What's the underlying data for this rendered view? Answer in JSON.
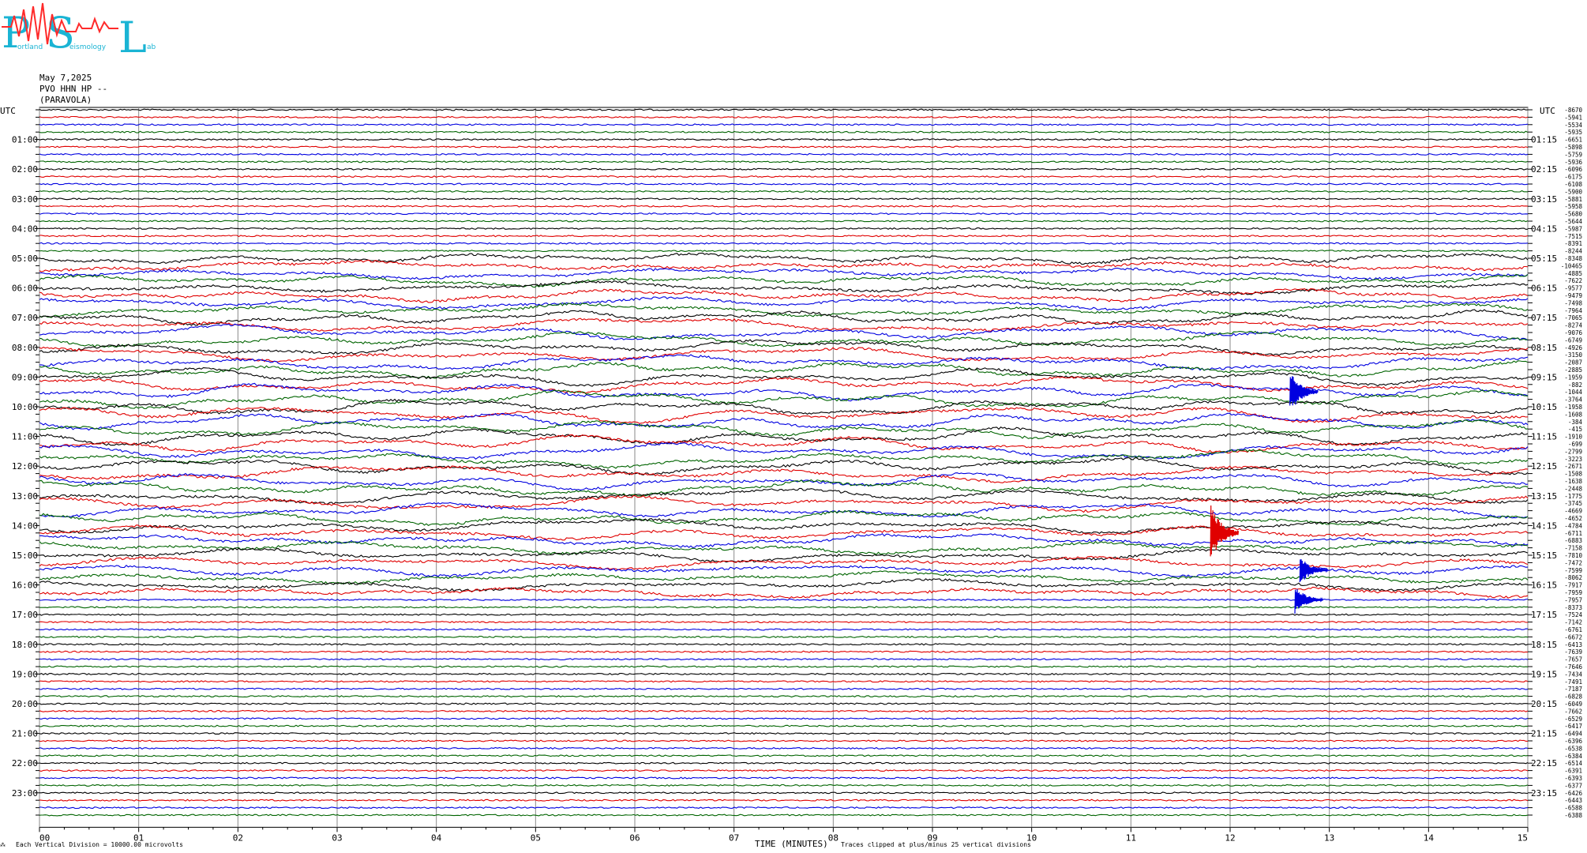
{
  "logo": {
    "letters": [
      "P",
      "S",
      "L"
    ],
    "small_text": [
      "ortland",
      "eismology",
      "ab"
    ],
    "color": "#1ab4d4",
    "trace_color": "#ff2a2a"
  },
  "header": {
    "date": "May 7,2025",
    "station": "PVO HHN HP --",
    "location": "(PARAVOLA)"
  },
  "footer": {
    "logo_glyph": "⁂",
    "vertical_division": "Each Vertical Division = 10000.00 microvolts",
    "time_label": "TIME (MINUTES)",
    "clip_note": "Traces clipped at plus/minus 25 vertical divisions"
  },
  "chart_data": {
    "type": "line",
    "title": "",
    "xlabel": "TIME (MINUTES)",
    "x_range": [
      0,
      15
    ],
    "x_ticks": [
      "00",
      "01",
      "02",
      "03",
      "04",
      "05",
      "06",
      "07",
      "08",
      "09",
      "10",
      "11",
      "12",
      "13",
      "14",
      "15"
    ],
    "trace_colors": [
      "#000000",
      "#e00000",
      "#0000e0",
      "#006400"
    ],
    "left_axis_title": "UTC",
    "right_axis_title": "UTC",
    "left_hour_labels": [
      "01:00",
      "02:00",
      "03:00",
      "04:00",
      "05:00",
      "06:00",
      "07:00",
      "08:00",
      "09:00",
      "10:00",
      "11:00",
      "12:00",
      "13:00",
      "14:00",
      "15:00",
      "16:00",
      "17:00",
      "18:00",
      "19:00",
      "20:00",
      "21:00",
      "22:00",
      "23:00"
    ],
    "right_hour_labels": [
      "01:15",
      "02:15",
      "03:15",
      "04:15",
      "05:15",
      "06:15",
      "07:15",
      "08:15",
      "09:15",
      "10:15",
      "11:15",
      "12:15",
      "13:15",
      "14:15",
      "15:15",
      "16:15",
      "17:15",
      "18:15",
      "19:15",
      "20:15",
      "21:15",
      "22:15",
      "23:15"
    ],
    "trace_offsets": [
      "-8670",
      "-5941",
      "-5534",
      "-5935",
      "-6651",
      "-5898",
      "-5759",
      "-5936",
      "-6096",
      "-6175",
      "-6108",
      "-5900",
      "-5881",
      "-5958",
      "-5680",
      "-5644",
      "-5987",
      "-7515",
      "-8391",
      "-8244",
      "-8348",
      "-10465",
      "-4885",
      "-7622",
      "-9577",
      "-9479",
      "-7498",
      "-7964",
      "-7065",
      "-8274",
      "-9076",
      "-6749",
      "-4926",
      "-3150",
      "-2087",
      "-2885",
      "-1959",
      "-882",
      "-1044",
      "-3764",
      "-1958",
      "-1608",
      "-384",
      "-415",
      "-1910",
      "-699",
      "-2799",
      "-3223",
      "-2671",
      "-1508",
      "-1638",
      "-2448",
      "-1775",
      "-3745",
      "-4669",
      "-4652",
      "-4784",
      "-6711",
      "-6883",
      "-7158",
      "-7810",
      "-7472",
      "-7599",
      "-8062",
      "-7917",
      "-7959",
      "-7957",
      "-8373",
      "-7524",
      "-7142",
      "-6761",
      "-6672",
      "-6413",
      "-7639",
      "-7657",
      "-7646",
      "-7434",
      "-7491",
      "-7187",
      "-6828",
      "-6049",
      "-7662",
      "-6529",
      "-6417",
      "-6494",
      "-6396",
      "-6538",
      "-6384",
      "-6514",
      "-6391",
      "-6393",
      "-6377",
      "-6426",
      "-6443",
      "-6588",
      "-6388"
    ],
    "trace_count": 96,
    "events": [
      {
        "trace": 38,
        "minute": 12.65,
        "amplitude_divisions": 3
      },
      {
        "trace": 57,
        "minute": 11.85,
        "amplitude_divisions": 4
      },
      {
        "trace": 62,
        "minute": 12.75,
        "amplitude_divisions": 2
      },
      {
        "trace": 66,
        "minute": 12.7,
        "amplitude_divisions": 2
      }
    ]
  }
}
